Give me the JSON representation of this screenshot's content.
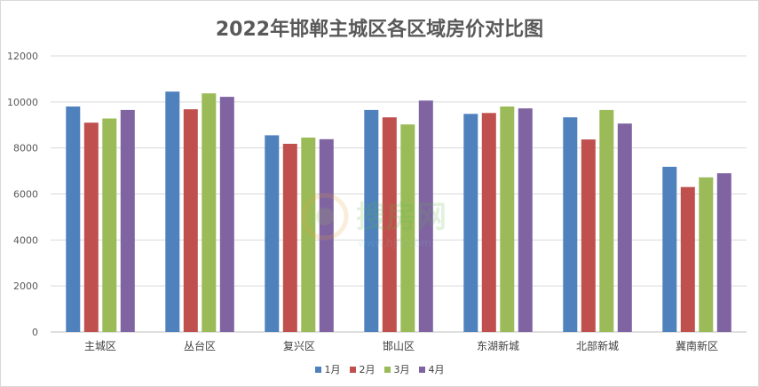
{
  "chart_data": {
    "type": "bar",
    "title": "2022年邯郸主城区各区域房价对比图",
    "xlabel": "",
    "ylabel": "",
    "categories": [
      "主城区",
      "丛台区",
      "复兴区",
      "邯山区",
      "东湖新城",
      "北部新城",
      "冀南新区"
    ],
    "ylim": [
      0,
      12000
    ],
    "yticks": [
      0,
      2000,
      4000,
      6000,
      8000,
      10000,
      12000
    ],
    "grid": true,
    "legend_position": "bottom",
    "series": [
      {
        "name": "1月",
        "color": "#4f81bd",
        "values": [
          9800,
          10450,
          8550,
          9650,
          9480,
          9330,
          7180
        ]
      },
      {
        "name": "2月",
        "color": "#c0504d",
        "values": [
          9100,
          9680,
          8180,
          9330,
          9520,
          8370,
          6300
        ]
      },
      {
        "name": "3月",
        "color": "#9bbb59",
        "values": [
          9280,
          10370,
          8450,
          9020,
          9800,
          9650,
          6720
        ]
      },
      {
        "name": "4月",
        "color": "#8064a2",
        "values": [
          9650,
          10220,
          8380,
          10060,
          9720,
          9060,
          6900
        ]
      }
    ]
  },
  "watermark": {
    "text": "搜房网",
    "subtext": "www.hjfz.com"
  }
}
